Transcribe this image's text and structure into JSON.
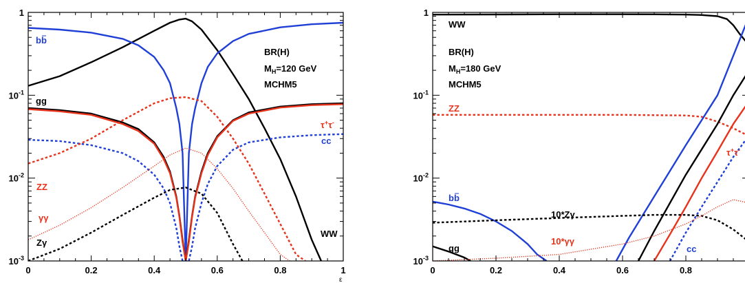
{
  "colors": {
    "black": "#000000",
    "blue": "#1f3fd6",
    "red": "#e8331c",
    "axis": "#000000"
  },
  "chart_data": [
    {
      "type": "line",
      "log_y": true,
      "xlim": [
        0,
        1
      ],
      "ylim": [
        0.001,
        1
      ],
      "x_ticks": [
        "0",
        "0.2",
        "0.4",
        "0.6",
        "0.8",
        "1"
      ],
      "y_ticks": [
        {
          "mant": "1",
          "exp": ""
        },
        {
          "mant": "10",
          "exp": "-1"
        },
        {
          "mant": "10",
          "exp": "-2"
        },
        {
          "mant": "10",
          "exp": "-3"
        }
      ],
      "xlabel": "ε",
      "info": [
        "BR(H)",
        "M",
        "H",
        "=120 GeV",
        "MCHM5"
      ],
      "series": [
        {
          "name": "WW",
          "color": "black",
          "style": "solid",
          "x": [
            0,
            0.1,
            0.2,
            0.3,
            0.4,
            0.45,
            0.48,
            0.5,
            0.52,
            0.55,
            0.6,
            0.65,
            0.7,
            0.75,
            0.8,
            0.85,
            0.9,
            0.93
          ],
          "y": [
            0.13,
            0.17,
            0.25,
            0.38,
            0.6,
            0.75,
            0.82,
            0.84,
            0.78,
            0.62,
            0.35,
            0.18,
            0.09,
            0.04,
            0.017,
            0.006,
            0.0018,
            0.001
          ]
        },
        {
          "name": "bb",
          "color": "blue",
          "style": "solid",
          "x": [
            0,
            0.1,
            0.2,
            0.3,
            0.35,
            0.4,
            0.43,
            0.45,
            0.47,
            0.48,
            0.49,
            0.5,
            0.51,
            0.52,
            0.53,
            0.55,
            0.57,
            0.6,
            0.65,
            0.7,
            0.8,
            0.9,
            1
          ],
          "y": [
            0.65,
            0.62,
            0.57,
            0.48,
            0.4,
            0.29,
            0.2,
            0.14,
            0.07,
            0.045,
            0.02,
            0.001,
            0.02,
            0.045,
            0.07,
            0.14,
            0.22,
            0.32,
            0.45,
            0.55,
            0.66,
            0.72,
            0.75
          ]
        },
        {
          "name": "gg",
          "color": "black",
          "style": "solid",
          "x": [
            0,
            0.1,
            0.2,
            0.3,
            0.35,
            0.4,
            0.43,
            0.45,
            0.47,
            0.48,
            0.49,
            0.5,
            0.51,
            0.52,
            0.53,
            0.55,
            0.57,
            0.6,
            0.65,
            0.7,
            0.8,
            0.9,
            1
          ],
          "y": [
            0.07,
            0.066,
            0.06,
            0.047,
            0.039,
            0.027,
            0.018,
            0.012,
            0.006,
            0.0035,
            0.0018,
            0.001,
            0.0018,
            0.0035,
            0.006,
            0.012,
            0.02,
            0.032,
            0.05,
            0.062,
            0.073,
            0.078,
            0.08
          ]
        },
        {
          "name": "τ+τ-",
          "color": "red",
          "style": "solid",
          "x": [
            0,
            0.1,
            0.2,
            0.3,
            0.35,
            0.4,
            0.43,
            0.45,
            0.47,
            0.48,
            0.49,
            0.5,
            0.51,
            0.52,
            0.53,
            0.55,
            0.57,
            0.6,
            0.65,
            0.7,
            0.8,
            0.9,
            1
          ],
          "y": [
            0.068,
            0.064,
            0.058,
            0.045,
            0.037,
            0.026,
            0.017,
            0.0115,
            0.0058,
            0.0034,
            0.0017,
            0.001,
            0.0017,
            0.0034,
            0.0058,
            0.0115,
            0.019,
            0.031,
            0.049,
            0.06,
            0.071,
            0.076,
            0.078
          ]
        },
        {
          "name": "cc",
          "color": "blue",
          "style": "dashed",
          "x": [
            0,
            0.1,
            0.2,
            0.3,
            0.35,
            0.4,
            0.43,
            0.45,
            0.47,
            0.48,
            0.49,
            0.5,
            0.51,
            0.52,
            0.53,
            0.55,
            0.57,
            0.6,
            0.65,
            0.7,
            0.8,
            0.9,
            1
          ],
          "y": [
            0.029,
            0.028,
            0.025,
            0.02,
            0.016,
            0.011,
            0.0075,
            0.005,
            0.0025,
            0.0015,
            0.001,
            0.001,
            0.001,
            0.0015,
            0.0025,
            0.005,
            0.0085,
            0.014,
            0.022,
            0.027,
            0.031,
            0.033,
            0.034
          ]
        },
        {
          "name": "ZZ",
          "color": "red",
          "style": "dashed",
          "x": [
            0,
            0.1,
            0.2,
            0.3,
            0.4,
            0.45,
            0.5,
            0.55,
            0.6,
            0.65,
            0.7,
            0.75,
            0.8,
            0.85,
            0.88
          ],
          "y": [
            0.015,
            0.02,
            0.03,
            0.05,
            0.08,
            0.092,
            0.095,
            0.085,
            0.055,
            0.03,
            0.015,
            0.0065,
            0.0028,
            0.0012,
            0.001
          ]
        },
        {
          "name": "γγ",
          "color": "red",
          "style": "dotted",
          "x": [
            0,
            0.1,
            0.2,
            0.3,
            0.4,
            0.45,
            0.5,
            0.55,
            0.6,
            0.65,
            0.7,
            0.75,
            0.8,
            0.83
          ],
          "y": [
            0.0018,
            0.0027,
            0.0044,
            0.0077,
            0.014,
            0.019,
            0.023,
            0.02,
            0.013,
            0.0075,
            0.004,
            0.0022,
            0.0012,
            0.001
          ]
        },
        {
          "name": "Zγ",
          "color": "black",
          "style": "dashed",
          "x": [
            0,
            0.1,
            0.2,
            0.3,
            0.4,
            0.45,
            0.5,
            0.55,
            0.6,
            0.65,
            0.68
          ],
          "y": [
            0.001,
            0.0014,
            0.0022,
            0.0036,
            0.0058,
            0.0072,
            0.0077,
            0.0065,
            0.0038,
            0.0016,
            0.001
          ]
        }
      ],
      "labels": [
        {
          "text": "bb",
          "color": "black",
          "suffix": ""
        },
        {
          "text": "gg",
          "color": "black"
        },
        {
          "text": "τ",
          "color": "red",
          "sup": "+",
          "tail": "τ",
          "sup2": "-"
        },
        {
          "text": "cc",
          "color": "blue"
        },
        {
          "text": "ZZ",
          "color": "red"
        },
        {
          "text": "γγ",
          "color": "red"
        },
        {
          "text": "Zγ",
          "color": "black"
        },
        {
          "text": "WW",
          "color": "black"
        }
      ]
    },
    {
      "type": "line",
      "log_y": true,
      "xlim": [
        0,
        1
      ],
      "ylim": [
        0.001,
        1
      ],
      "x_ticks": [
        "0",
        "0.2",
        "0.4",
        "0.6",
        "0.8"
      ],
      "y_ticks": [
        {
          "mant": "1",
          "exp": ""
        },
        {
          "mant": "10",
          "exp": "-1"
        },
        {
          "mant": "10",
          "exp": "-2"
        },
        {
          "mant": "10",
          "exp": "-3"
        }
      ],
      "info": [
        "BR(H)",
        "M",
        "H",
        "=180 GeV",
        "MCHM5"
      ],
      "series": [
        {
          "name": "WW",
          "color": "black",
          "style": "solid",
          "x": [
            0,
            0.2,
            0.4,
            0.6,
            0.7,
            0.8,
            0.85,
            0.9,
            0.93,
            0.95,
            0.97,
            1
          ],
          "y": [
            0.94,
            0.945,
            0.95,
            0.95,
            0.948,
            0.94,
            0.93,
            0.9,
            0.83,
            0.7,
            0.55,
            0.4
          ]
        },
        {
          "name": "ZZ",
          "color": "red",
          "style": "dashed",
          "x": [
            0,
            0.2,
            0.4,
            0.6,
            0.8,
            0.85,
            0.9,
            0.95,
            1
          ],
          "y": [
            0.058,
            0.058,
            0.058,
            0.058,
            0.057,
            0.055,
            0.048,
            0.04,
            0.032
          ]
        },
        {
          "name": "bb",
          "color": "blue",
          "style": "solid",
          "x": [
            0,
            0.05,
            0.1,
            0.15,
            0.2,
            0.25,
            0.3,
            0.33,
            0.36,
            0.58,
            0.62,
            0.7,
            0.8,
            0.9,
            0.95,
            1
          ],
          "y": [
            0.0052,
            0.0048,
            0.0043,
            0.0037,
            0.003,
            0.0023,
            0.0016,
            0.0012,
            0.001,
            0.001,
            0.0019,
            0.006,
            0.025,
            0.1,
            0.3,
            0.9
          ],
          "break_after": 8
        },
        {
          "name": "gg",
          "color": "black",
          "style": "solid",
          "x": [
            0,
            0.05,
            0.1,
            0.12,
            0.65,
            0.7,
            0.8,
            0.9,
            0.95,
            1
          ],
          "y": [
            0.0015,
            0.0013,
            0.0011,
            0.001,
            0.001,
            0.0023,
            0.011,
            0.045,
            0.1,
            0.2
          ],
          "break_after": 3
        },
        {
          "name": "τ+τ-",
          "color": "red",
          "style": "solid",
          "x": [
            0.7,
            0.75,
            0.8,
            0.85,
            0.9,
            0.95,
            1
          ],
          "y": [
            0.001,
            0.0021,
            0.0045,
            0.01,
            0.021,
            0.045,
            0.085
          ]
        },
        {
          "name": "cc",
          "color": "blue",
          "style": "dashed",
          "x": [
            0.75,
            0.8,
            0.85,
            0.9,
            0.95,
            1
          ],
          "y": [
            0.001,
            0.0022,
            0.0045,
            0.009,
            0.018,
            0.033
          ]
        },
        {
          "name": "10*Zγ",
          "color": "black",
          "style": "dashed",
          "x": [
            0,
            0.2,
            0.4,
            0.6,
            0.7,
            0.8,
            0.85,
            0.9,
            0.95,
            1
          ],
          "y": [
            0.0029,
            0.0031,
            0.0033,
            0.0035,
            0.0036,
            0.0036,
            0.0035,
            0.0031,
            0.0024,
            0.0017
          ]
        },
        {
          "name": "10*γγ",
          "color": "red",
          "style": "dotted",
          "x": [
            0,
            0.2,
            0.4,
            0.6,
            0.7,
            0.8,
            0.85,
            0.9,
            0.95,
            1
          ],
          "y": [
            0.001,
            0.00108,
            0.0012,
            0.0016,
            0.002,
            0.0028,
            0.0035,
            0.0045,
            0.0055,
            0.005
          ]
        }
      ],
      "labels": [
        {
          "text": "WW",
          "color": "black"
        },
        {
          "text": "ZZ",
          "color": "red"
        },
        {
          "text": "bb",
          "color": "blue"
        },
        {
          "text": "10*Zγ",
          "color": "black"
        },
        {
          "text": "10*γγ",
          "color": "red"
        },
        {
          "text": "gg",
          "color": "black"
        },
        {
          "text": "cc",
          "color": "blue"
        },
        {
          "text": "τ",
          "color": "red",
          "sup": "+",
          "tail": "τ",
          "sup2": "-"
        }
      ]
    }
  ]
}
